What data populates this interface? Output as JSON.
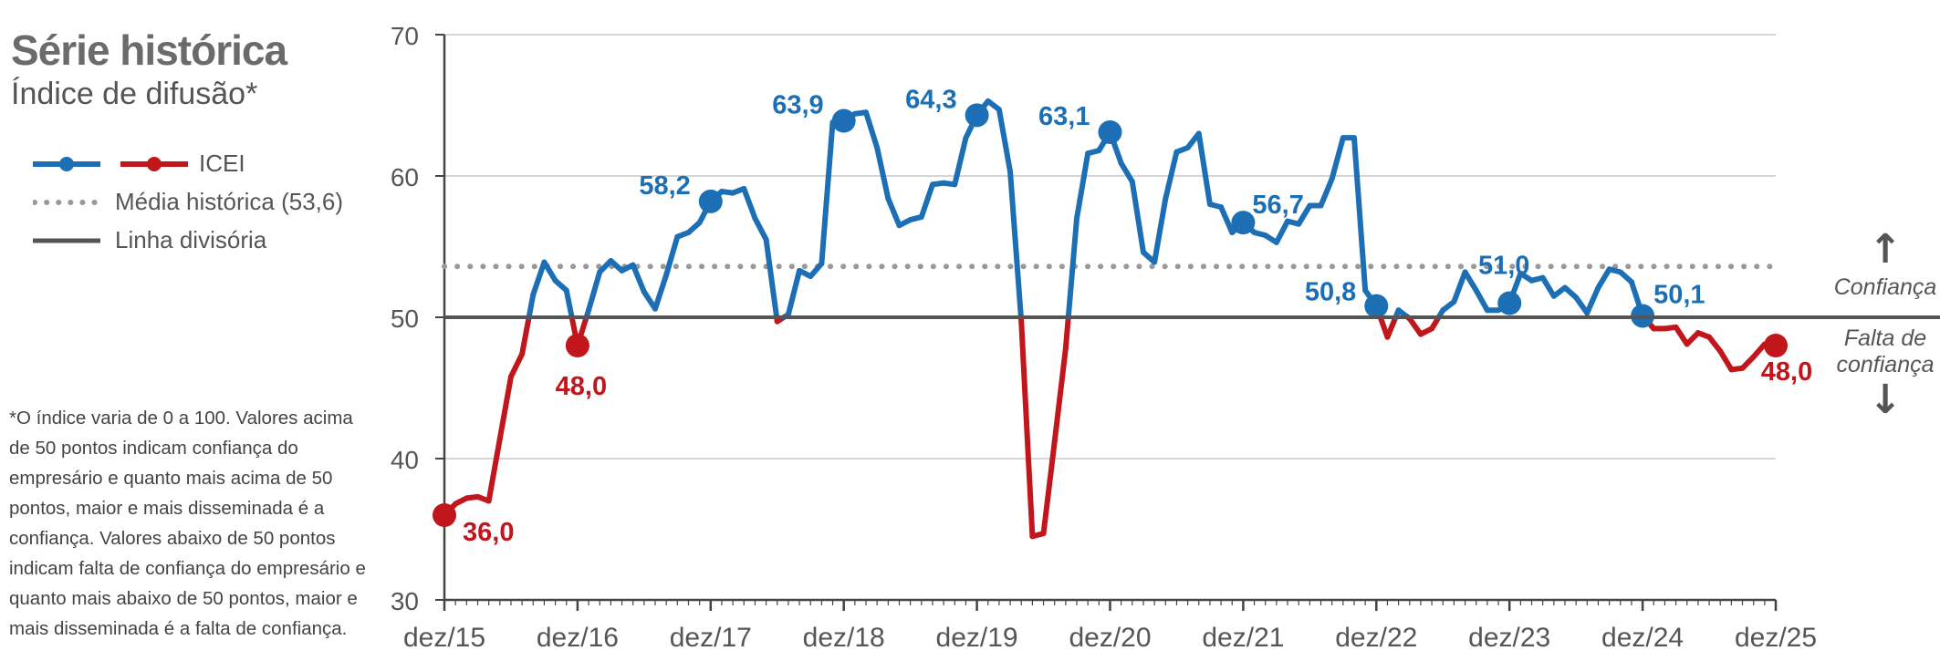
{
  "header": {
    "title": "Série histórica",
    "subtitle": "Índice de difusão*"
  },
  "legend": {
    "icei": "ICEI",
    "media": "Média histórica (53,6)",
    "linha": "Linha divisória"
  },
  "footnote": "*O índice varia de 0 a 100. Valores acima de 50 pontos indicam confiança do empresário e quanto mais acima de 50 pontos, maior e mais disseminada é a confiança. Valores abaixo de 50 pontos indicam falta de confiança do empresário e quanto mais abaixo de 50 pontos, maior e mais disseminada é a falta de confiança.",
  "annotations": {
    "confianca": "Confiança",
    "falta_line1": "Falta de",
    "falta_line2": "confiança",
    "arrow_up": "↑",
    "arrow_down": "↓"
  },
  "colors": {
    "confidence": "#1d6fb5",
    "lack_of_confidence": "#c0161c",
    "divider": "#555555",
    "average": "#999999",
    "grid": "#c8c8c8"
  },
  "chart_data": {
    "type": "line",
    "title": "Série histórica",
    "subtitle": "Índice de difusão*",
    "x_tick_labels": [
      "dez/15",
      "dez/16",
      "dez/17",
      "dez/18",
      "dez/19",
      "dez/20",
      "dez/21",
      "dez/22",
      "dez/23",
      "dez/24",
      "dez/25"
    ],
    "y_tick_labels": [
      "30",
      "40",
      "50",
      "60",
      "70"
    ],
    "ylim": [
      30,
      70
    ],
    "grid": true,
    "divider_value": 50,
    "average_value": 53.6,
    "series": [
      {
        "name": "ICEI",
        "start_month": "dez/15",
        "values": [
          36.0,
          36.8,
          37.2,
          37.3,
          37.0,
          41.4,
          45.8,
          47.4,
          51.6,
          53.9,
          52.6,
          51.9,
          48.0,
          50.5,
          53.2,
          54.0,
          53.3,
          53.7,
          51.8,
          50.6,
          53.0,
          55.7,
          56.0,
          56.7,
          58.2,
          58.9,
          58.8,
          59.1,
          57.0,
          55.5,
          49.7,
          50.2,
          53.3,
          52.9,
          53.8,
          63.8,
          63.9,
          64.4,
          64.5,
          62.0,
          58.4,
          56.5,
          56.9,
          57.1,
          59.4,
          59.5,
          59.4,
          62.7,
          64.3,
          65.3,
          64.7,
          60.3,
          49.7,
          34.5,
          34.7,
          41.2,
          47.8,
          57.0,
          61.6,
          61.8,
          63.1,
          60.9,
          59.6,
          54.6,
          53.9,
          58.4,
          61.7,
          62.0,
          63.0,
          58.0,
          57.8,
          56.0,
          56.7,
          56.0,
          55.8,
          55.3,
          56.8,
          56.6,
          57.9,
          57.9,
          59.8,
          62.7,
          62.7,
          51.9,
          50.8,
          48.6,
          50.5,
          49.9,
          48.8,
          49.2,
          50.5,
          51.1,
          53.2,
          51.9,
          50.5,
          50.5,
          51.0,
          53.1,
          52.6,
          52.8,
          51.5,
          52.1,
          51.4,
          50.3,
          52.1,
          53.4,
          53.2,
          52.5,
          50.1,
          49.2,
          49.2,
          49.3,
          48.1,
          48.9,
          48.6,
          47.6,
          46.3,
          46.4,
          47.2,
          48.1,
          48.0
        ]
      }
    ],
    "data_labels": [
      {
        "index": 0,
        "label": "36,0"
      },
      {
        "index": 12,
        "label": "48,0"
      },
      {
        "index": 24,
        "label": "58,2"
      },
      {
        "index": 36,
        "label": "63,9"
      },
      {
        "index": 48,
        "label": "64,3"
      },
      {
        "index": 60,
        "label": "63,1"
      },
      {
        "index": 72,
        "label": "56,7"
      },
      {
        "index": 84,
        "label": "50,8"
      },
      {
        "index": 96,
        "label": "51,0"
      },
      {
        "index": 108,
        "label": "50,1"
      },
      {
        "index": 120,
        "label": "48,0"
      }
    ]
  }
}
